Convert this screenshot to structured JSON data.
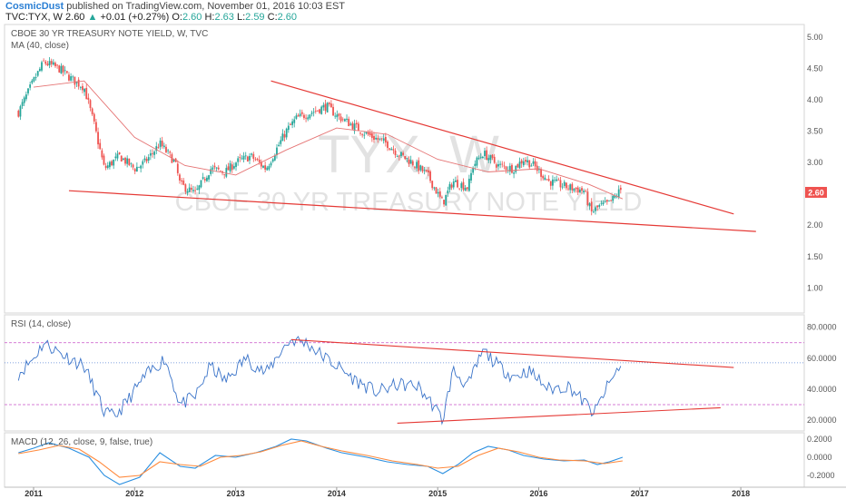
{
  "header": {
    "author": "CosmicDust",
    "published_text": "published on TradingView.com, November 01, 2016 10:03 EST",
    "symbol": "TVC:TYX, W",
    "last": "2.60",
    "change": "+0.01 (+0.27%)",
    "ohlc": {
      "o_label": "O:",
      "o": "2.60",
      "h_label": "H:",
      "h": "2.63",
      "l_label": "L:",
      "l": "2.59",
      "c_label": "C:",
      "c": "2.60"
    }
  },
  "watermark": {
    "ticker": "TYX, W",
    "name": "CBOE 30 YR TREASURY NOTE YIELD"
  },
  "colors": {
    "up": "#26a69a",
    "down": "#ef5350",
    "ma": "#e57373",
    "rsi": "#3b74c9",
    "macd": "#2a8fe0",
    "signal": "#ff8a3d",
    "trend": "#e53935",
    "band": "#c651c6",
    "mid": "#5a86d6"
  },
  "chart_data": [
    {
      "type": "candlestick",
      "title": "CBOE 30 YR TREASURY NOTE YIELD, W, TVC",
      "indicator": "MA (40, close)",
      "ylim": [
        0.6,
        5.2
      ],
      "y_ticks": [
        "5.00",
        "4.50",
        "4.00",
        "3.50",
        "3.00",
        "2.50",
        "2.00",
        "1.50",
        "1.00"
      ],
      "last_label": "2.60",
      "close_points": [
        [
          2010.85,
          3.8
        ],
        [
          2011.0,
          4.3
        ],
        [
          2011.1,
          4.6
        ],
        [
          2011.25,
          4.5
        ],
        [
          2011.4,
          4.3
        ],
        [
          2011.5,
          4.2
        ],
        [
          2011.6,
          3.6
        ],
        [
          2011.7,
          2.9
        ],
        [
          2011.85,
          3.1
        ],
        [
          2012.0,
          2.9
        ],
        [
          2012.1,
          3.0
        ],
        [
          2012.25,
          3.3
        ],
        [
          2012.4,
          3.0
        ],
        [
          2012.45,
          2.65
        ],
        [
          2012.6,
          2.5
        ],
        [
          2012.75,
          2.9
        ],
        [
          2012.9,
          2.85
        ],
        [
          2013.0,
          3.0
        ],
        [
          2013.15,
          3.1
        ],
        [
          2013.3,
          2.9
        ],
        [
          2013.4,
          3.2
        ],
        [
          2013.5,
          3.5
        ],
        [
          2013.6,
          3.7
        ],
        [
          2013.75,
          3.8
        ],
        [
          2013.9,
          3.9
        ],
        [
          2014.0,
          3.75
        ],
        [
          2014.15,
          3.6
        ],
        [
          2014.3,
          3.45
        ],
        [
          2014.5,
          3.3
        ],
        [
          2014.6,
          3.15
        ],
        [
          2014.75,
          3.0
        ],
        [
          2014.9,
          2.8
        ],
        [
          2015.05,
          2.35
        ],
        [
          2015.15,
          2.7
        ],
        [
          2015.3,
          2.6
        ],
        [
          2015.35,
          2.95
        ],
        [
          2015.45,
          3.15
        ],
        [
          2015.6,
          2.95
        ],
        [
          2015.75,
          2.9
        ],
        [
          2015.85,
          3.05
        ],
        [
          2015.95,
          2.95
        ],
        [
          2016.1,
          2.7
        ],
        [
          2016.3,
          2.6
        ],
        [
          2016.45,
          2.55
        ],
        [
          2016.52,
          2.2
        ],
        [
          2016.6,
          2.3
        ],
        [
          2016.7,
          2.35
        ],
        [
          2016.83,
          2.6
        ]
      ],
      "ma_points": [
        [
          2011.0,
          4.2
        ],
        [
          2011.5,
          4.3
        ],
        [
          2012.0,
          3.4
        ],
        [
          2012.5,
          2.95
        ],
        [
          2013.0,
          2.8
        ],
        [
          2013.5,
          3.2
        ],
        [
          2014.0,
          3.55
        ],
        [
          2014.5,
          3.45
        ],
        [
          2015.0,
          3.05
        ],
        [
          2015.5,
          2.85
        ],
        [
          2016.0,
          2.9
        ],
        [
          2016.5,
          2.65
        ],
        [
          2016.83,
          2.42
        ]
      ],
      "trendlines": [
        {
          "from": [
            2013.35,
            4.3
          ],
          "to": [
            2017.93,
            2.18
          ]
        },
        {
          "from": [
            2011.35,
            2.55
          ],
          "to": [
            2018.15,
            1.9
          ]
        }
      ]
    },
    {
      "type": "line",
      "title": "RSI (14, close)",
      "ylim": [
        13,
        88
      ],
      "y_ticks": [
        "80.0000",
        "60.0000",
        "40.0000",
        "20.0000"
      ],
      "bands": [
        70,
        30
      ],
      "midline": 57,
      "points": [
        [
          2010.85,
          50
        ],
        [
          2011.0,
          60
        ],
        [
          2011.1,
          70
        ],
        [
          2011.3,
          62
        ],
        [
          2011.5,
          55
        ],
        [
          2011.6,
          40
        ],
        [
          2011.7,
          25
        ],
        [
          2011.8,
          22
        ],
        [
          2011.9,
          30
        ],
        [
          2012.1,
          48
        ],
        [
          2012.3,
          60
        ],
        [
          2012.45,
          30
        ],
        [
          2012.6,
          35
        ],
        [
          2012.75,
          55
        ],
        [
          2012.9,
          45
        ],
        [
          2013.1,
          60
        ],
        [
          2013.3,
          50
        ],
        [
          2013.45,
          65
        ],
        [
          2013.55,
          72
        ],
        [
          2013.7,
          70
        ],
        [
          2013.85,
          62
        ],
        [
          2014.0,
          55
        ],
        [
          2014.2,
          45
        ],
        [
          2014.4,
          38
        ],
        [
          2014.6,
          43
        ],
        [
          2014.8,
          42
        ],
        [
          2014.95,
          30
        ],
        [
          2015.05,
          20
        ],
        [
          2015.15,
          52
        ],
        [
          2015.3,
          42
        ],
        [
          2015.45,
          65
        ],
        [
          2015.6,
          55
        ],
        [
          2015.75,
          48
        ],
        [
          2015.9,
          52
        ],
        [
          2016.1,
          40
        ],
        [
          2016.3,
          42
        ],
        [
          2016.5,
          28
        ],
        [
          2016.55,
          24
        ],
        [
          2016.65,
          38
        ],
        [
          2016.83,
          58
        ]
      ],
      "trendlines": [
        {
          "from": [
            2013.55,
            72
          ],
          "to": [
            2017.93,
            54
          ]
        },
        {
          "from": [
            2014.6,
            18
          ],
          "to": [
            2017.8,
            28
          ]
        }
      ]
    },
    {
      "type": "line",
      "title": "MACD (12, 26, close, 9, false, true)",
      "ylim": [
        -0.33,
        0.27
      ],
      "y_ticks": [
        "0.2000",
        "0.0000",
        "-0.2000"
      ],
      "series": [
        {
          "name": "MACD",
          "points": [
            [
              2010.85,
              0.05
            ],
            [
              2011.0,
              0.1
            ],
            [
              2011.15,
              0.16
            ],
            [
              2011.35,
              0.1
            ],
            [
              2011.55,
              0.0
            ],
            [
              2011.7,
              -0.2
            ],
            [
              2011.85,
              -0.3
            ],
            [
              2012.05,
              -0.22
            ],
            [
              2012.25,
              0.05
            ],
            [
              2012.45,
              -0.1
            ],
            [
              2012.6,
              -0.12
            ],
            [
              2012.8,
              0.02
            ],
            [
              2013.0,
              0.0
            ],
            [
              2013.2,
              0.05
            ],
            [
              2013.4,
              0.12
            ],
            [
              2013.55,
              0.2
            ],
            [
              2013.7,
              0.18
            ],
            [
              2013.9,
              0.1
            ],
            [
              2014.05,
              0.05
            ],
            [
              2014.3,
              0.0
            ],
            [
              2014.5,
              -0.05
            ],
            [
              2014.7,
              -0.08
            ],
            [
              2014.9,
              -0.1
            ],
            [
              2015.05,
              -0.18
            ],
            [
              2015.2,
              -0.08
            ],
            [
              2015.35,
              0.05
            ],
            [
              2015.5,
              0.12
            ],
            [
              2015.7,
              0.08
            ],
            [
              2015.85,
              0.02
            ],
            [
              2016.05,
              -0.02
            ],
            [
              2016.25,
              -0.04
            ],
            [
              2016.45,
              -0.03
            ],
            [
              2016.58,
              -0.08
            ],
            [
              2016.7,
              -0.05
            ],
            [
              2016.83,
              0.0
            ]
          ]
        },
        {
          "name": "Signal",
          "points": [
            [
              2010.85,
              0.04
            ],
            [
              2011.05,
              0.08
            ],
            [
              2011.25,
              0.13
            ],
            [
              2011.45,
              0.09
            ],
            [
              2011.65,
              -0.05
            ],
            [
              2011.85,
              -0.22
            ],
            [
              2012.05,
              -0.2
            ],
            [
              2012.25,
              -0.05
            ],
            [
              2012.45,
              -0.08
            ],
            [
              2012.65,
              -0.1
            ],
            [
              2012.85,
              0.0
            ],
            [
              2013.05,
              0.02
            ],
            [
              2013.25,
              0.06
            ],
            [
              2013.45,
              0.13
            ],
            [
              2013.65,
              0.18
            ],
            [
              2013.85,
              0.12
            ],
            [
              2014.05,
              0.07
            ],
            [
              2014.3,
              0.02
            ],
            [
              2014.55,
              -0.04
            ],
            [
              2014.8,
              -0.08
            ],
            [
              2015.0,
              -0.12
            ],
            [
              2015.2,
              -0.1
            ],
            [
              2015.4,
              0.02
            ],
            [
              2015.6,
              0.1
            ],
            [
              2015.8,
              0.06
            ],
            [
              2016.0,
              0.0
            ],
            [
              2016.2,
              -0.03
            ],
            [
              2016.45,
              -0.04
            ],
            [
              2016.65,
              -0.07
            ],
            [
              2016.83,
              -0.04
            ]
          ]
        }
      ]
    }
  ],
  "x_axis": {
    "labels": [
      "2011",
      "2012",
      "2013",
      "2014",
      "2015",
      "2016",
      "2017",
      "2018"
    ]
  }
}
